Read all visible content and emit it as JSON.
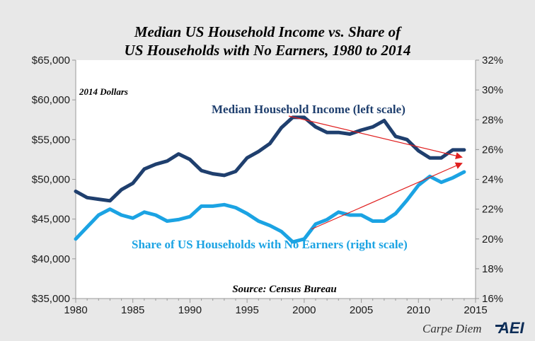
{
  "chart_data": {
    "type": "line",
    "title_line1": "Median US Household Income vs. Share of",
    "title_line2": "US Households with No Earners, 1980 to 2014",
    "note": "2014 Dollars",
    "source": "Source: Census Bureau",
    "footer": "Carpe Diem",
    "logo": "AEI",
    "x_ticks": [
      "1980",
      "1985",
      "1990",
      "1995",
      "2000",
      "2005",
      "2010",
      "2015"
    ],
    "xlim": [
      1980,
      2015
    ],
    "left_axis": {
      "ylim": [
        35000,
        65000
      ],
      "ticks": [
        "$35,000",
        "$40,000",
        "$45,000",
        "$50,000",
        "$55,000",
        "$60,000",
        "$65,000"
      ],
      "tick_values": [
        35000,
        40000,
        45000,
        50000,
        55000,
        60000,
        65000
      ]
    },
    "right_axis": {
      "ylim": [
        16,
        32
      ],
      "ticks": [
        "16%",
        "18%",
        "20%",
        "22%",
        "24%",
        "26%",
        "28%",
        "30%",
        "32%"
      ],
      "tick_values": [
        16,
        18,
        20,
        22,
        24,
        26,
        28,
        30,
        32
      ]
    },
    "x": [
      1980,
      1981,
      1982,
      1983,
      1984,
      1985,
      1986,
      1987,
      1988,
      1989,
      1990,
      1991,
      1992,
      1993,
      1994,
      1995,
      1996,
      1997,
      1998,
      1999,
      2000,
      2001,
      2002,
      2003,
      2004,
      2005,
      2006,
      2007,
      2008,
      2009,
      2010,
      2011,
      2012,
      2013,
      2014
    ],
    "series": [
      {
        "name": "Median Household Income (left scale)",
        "axis": "left",
        "color": "#1f3f6e",
        "values": [
          48500,
          47700,
          47500,
          47300,
          48700,
          49500,
          51300,
          51900,
          52300,
          53200,
          52500,
          51100,
          50700,
          50500,
          51000,
          52700,
          53500,
          54500,
          56500,
          57800,
          57800,
          56600,
          55900,
          55900,
          55700,
          56200,
          56600,
          57400,
          55400,
          55000,
          53600,
          52700,
          52700,
          53700,
          53700
        ]
      },
      {
        "name": "Share of US Households with No Earners (right scale)",
        "axis": "right",
        "color": "#1ba3e3",
        "values": [
          20.0,
          20.8,
          21.6,
          22.0,
          21.6,
          21.4,
          21.8,
          21.6,
          21.2,
          21.3,
          21.5,
          22.2,
          22.2,
          22.3,
          22.1,
          21.7,
          21.2,
          20.9,
          20.5,
          19.8,
          20.0,
          21.0,
          21.3,
          21.8,
          21.6,
          21.6,
          21.2,
          21.2,
          21.7,
          22.6,
          23.6,
          24.2,
          23.8,
          24.1,
          24.5
        ]
      }
    ]
  }
}
